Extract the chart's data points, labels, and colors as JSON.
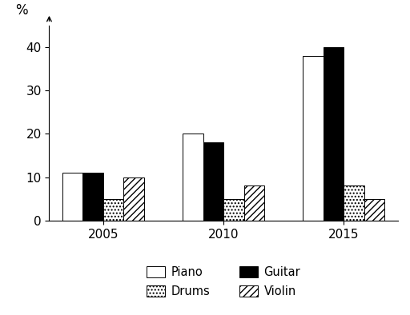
{
  "years": [
    "2005",
    "2010",
    "2015"
  ],
  "instruments": [
    "Piano",
    "Guitar",
    "Drums",
    "Violin"
  ],
  "values": {
    "Piano": [
      11,
      20,
      38
    ],
    "Guitar": [
      11,
      18,
      40
    ],
    "Drums": [
      5,
      5,
      8
    ],
    "Violin": [
      10,
      8,
      5
    ]
  },
  "colors": {
    "Piano": "#ffffff",
    "Guitar": "#000000",
    "Drums": "#ffffff",
    "Violin": "#ffffff"
  },
  "hatches": {
    "Piano": "",
    "Guitar": "",
    "Drums": "....",
    "Violin": "////"
  },
  "edgecolor": "#000000",
  "ylabel": "%",
  "ylim": [
    0,
    45
  ],
  "yticks": [
    0,
    10,
    20,
    30,
    40
  ],
  "bar_width": 0.17,
  "title": "",
  "background_color": "#ffffff",
  "legend_order": [
    "Piano",
    "Drums",
    "Guitar",
    "Violin"
  ],
  "figsize": [
    5.12,
    3.94
  ],
  "dpi": 100
}
